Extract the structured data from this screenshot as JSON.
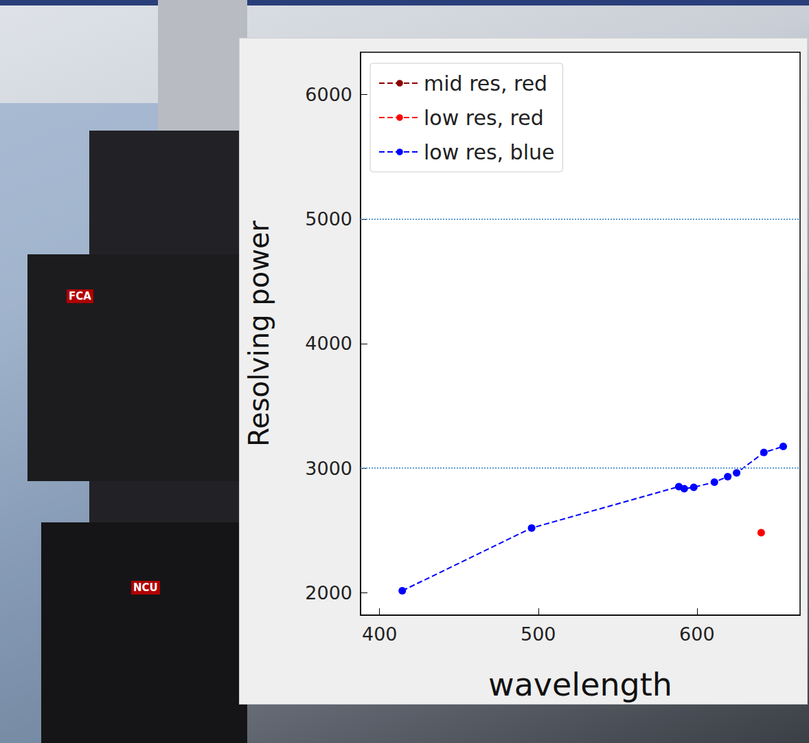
{
  "photo_labels": [
    "FCA",
    "NCU"
  ],
  "chart_data": {
    "type": "line",
    "x_label": "wavelength",
    "y_label": "Resolving power",
    "xlim": [
      388,
      665
    ],
    "xticks": [
      400,
      500,
      600
    ],
    "ylim": [
      1820,
      6340
    ],
    "yticks": [
      2000,
      3000,
      4000,
      5000,
      6000
    ],
    "reference_lines": [
      3000,
      5000
    ],
    "legend": "upper left",
    "grid": false,
    "marker": "circle",
    "line_style": "dashed",
    "series": [
      {
        "name": "mid res, red",
        "color": "#8b0000",
        "x": [],
        "values": []
      },
      {
        "name": "low res, red",
        "color": "#ff0000",
        "x": [
          640.5
        ],
        "values": [
          2482
        ]
      },
      {
        "name": "low res, blue",
        "color": "#0000ff",
        "x": [
          414.3,
          495.8,
          588.6,
          592,
          598,
          611,
          619.4,
          625,
          642.2,
          654.4
        ],
        "values": [
          2016,
          2520,
          2852,
          2836,
          2847,
          2888,
          2932,
          2962,
          3126,
          3175
        ]
      }
    ]
  }
}
